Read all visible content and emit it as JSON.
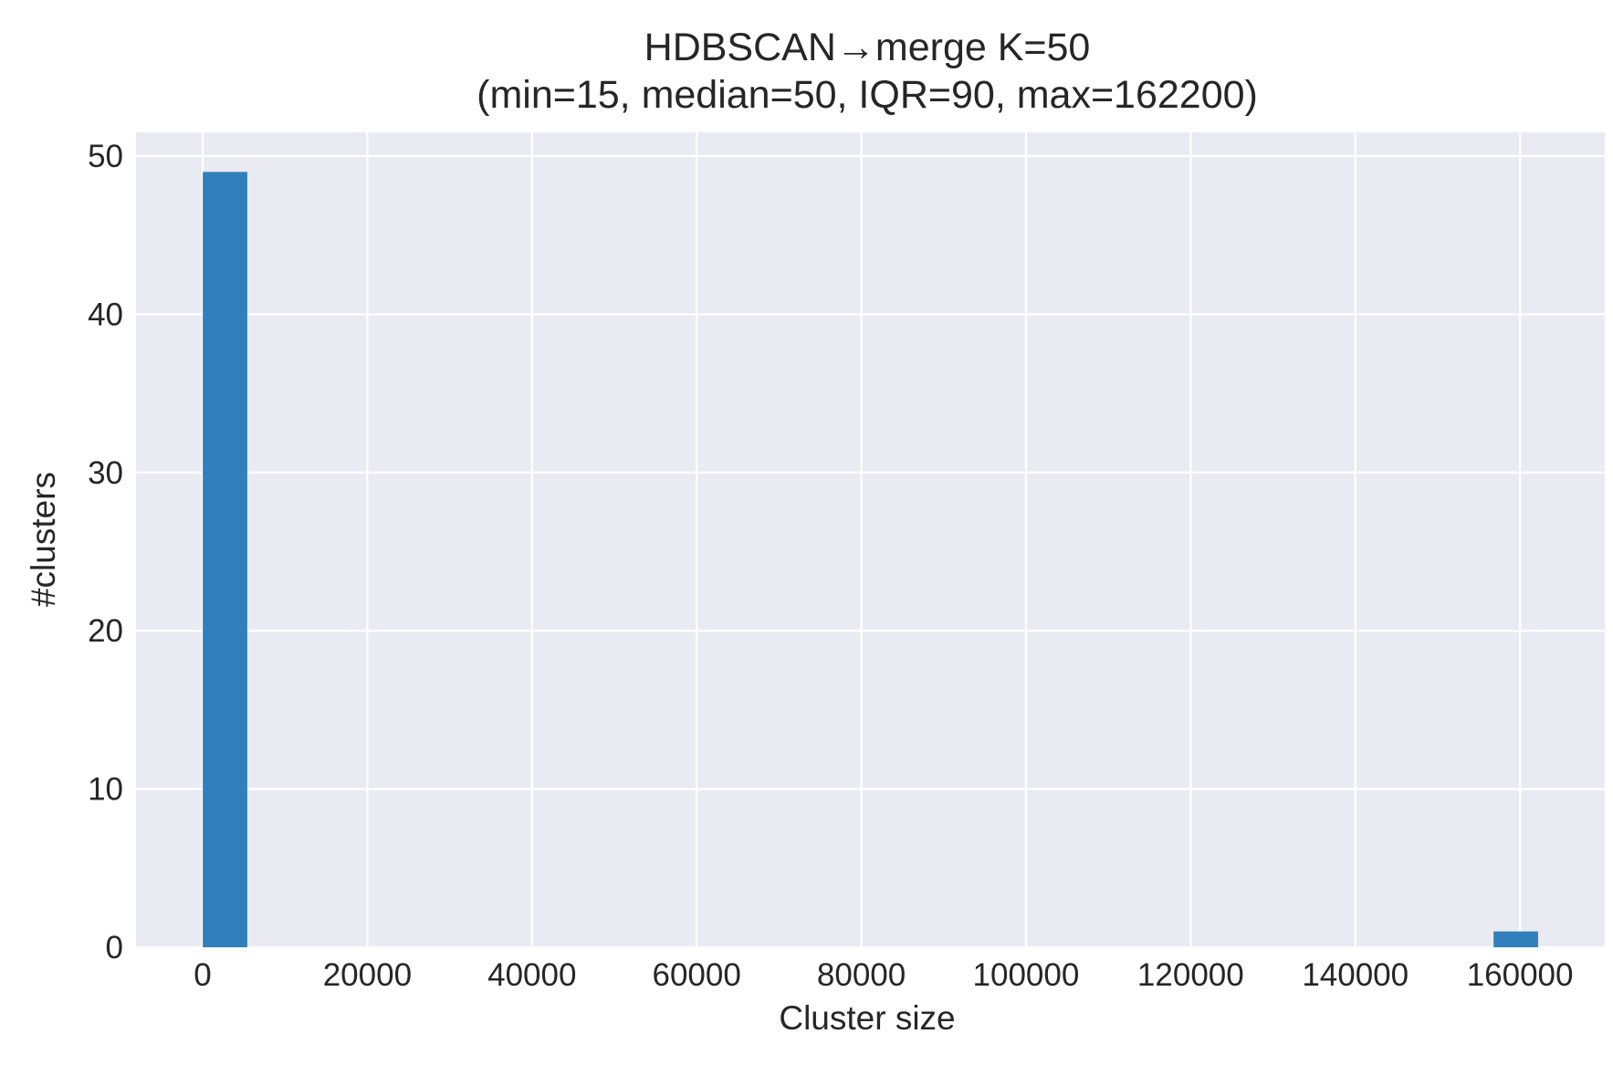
{
  "chart_data": {
    "type": "bar",
    "title": "HDBSCAN→merge K=50",
    "subtitle": "(min=15, median=50, IQR=90, max=162200)",
    "xlabel": "Cluster size",
    "ylabel": "#clusters",
    "xlim": [
      -8095,
      170300
    ],
    "ylim": [
      0,
      51.5
    ],
    "xticks": [
      0,
      20000,
      40000,
      60000,
      80000,
      100000,
      120000,
      140000,
      160000
    ],
    "xtick_labels": [
      "0",
      "20000",
      "40000",
      "60000",
      "80000",
      "100000",
      "120000",
      "140000",
      "160000"
    ],
    "yticks": [
      0,
      10,
      20,
      30,
      40,
      50
    ],
    "ytick_labels": [
      "0",
      "10",
      "20",
      "30",
      "40",
      "50"
    ],
    "grid": true,
    "bins": [
      {
        "x0": 15,
        "x1": 5421,
        "count": 49
      },
      {
        "x0": 156794,
        "x1": 162200,
        "count": 1
      }
    ],
    "colors": {
      "bar": "#3180bb",
      "plot_background": "#eaeaf2",
      "grid": "#ffffff",
      "text": "#262626"
    }
  }
}
